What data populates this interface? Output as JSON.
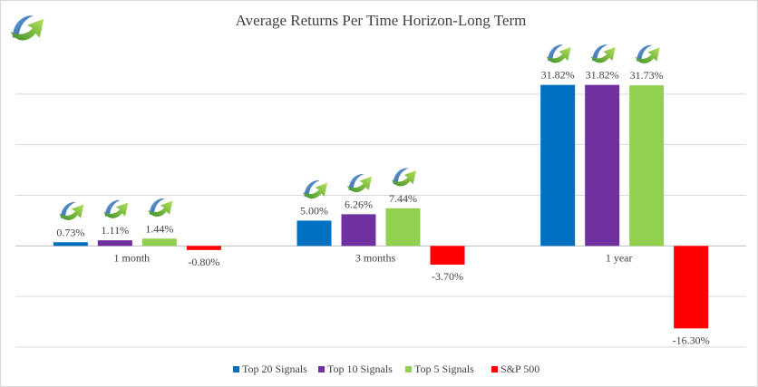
{
  "chart_data": {
    "type": "bar",
    "title": "Average Returns Per Time Horizon-Long Term",
    "categories": [
      "1 month",
      "3 months",
      "1 year"
    ],
    "series": [
      {
        "name": "Top 20 Signals",
        "color": "#0070c0",
        "values": [
          0.73,
          5.0,
          31.82
        ],
        "labels": [
          "0.73%",
          "5.00%",
          "31.82%"
        ]
      },
      {
        "name": "Top 10 Signals",
        "color": "#7030a0",
        "values": [
          1.11,
          6.26,
          31.82
        ],
        "labels": [
          "1.11%",
          "6.26%",
          "31.82%"
        ]
      },
      {
        "name": "Top 5 Signals",
        "color": "#92d050",
        "values": [
          1.44,
          7.44,
          31.73
        ],
        "labels": [
          "1.44%",
          "7.44%",
          "31.73%"
        ]
      },
      {
        "name": "S&P 500",
        "color": "#ff0000",
        "values": [
          -0.8,
          -3.7,
          -16.3
        ],
        "labels": [
          "-0.80%",
          "-3.70%",
          "-16.30%"
        ]
      }
    ],
    "ylim": [
      -20,
      40
    ],
    "grid": true,
    "legend_position": "bottom",
    "logo_icon": "rising-arrow-logo-icon"
  }
}
